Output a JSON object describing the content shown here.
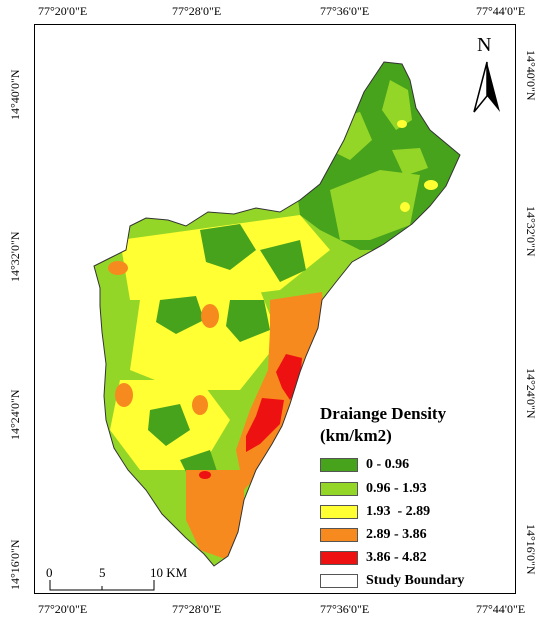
{
  "coordinates": {
    "top": [
      "77°20'0\"E",
      "77°28'0\"E",
      "77°36'0\"E",
      "77°44'0\"E"
    ],
    "bottom": [
      "77°20'0\"E",
      "77°28'0\"E",
      "77°36'0\"E",
      "77°44'0\"E"
    ],
    "left": [
      "14°40'0\"N",
      "14°32'0\"N",
      "14°24'0\"N",
      "14°16'0\"N"
    ],
    "right": [
      "14°40'0\"N",
      "14°32'0\"N",
      "14°24'0\"N",
      "14°16'0\"N"
    ]
  },
  "north_arrow": {
    "letter": "N",
    "icon": "north-arrow-icon"
  },
  "legend": {
    "title_line1": "Draiange Density",
    "title_line2": "(km/km2)",
    "classes": [
      {
        "label": "0 - 0.96",
        "color": "#48a31c"
      },
      {
        "label": "0.96 - 1.93",
        "color": "#94d628"
      },
      {
        "label": "1.93  - 2.89",
        "color": "#ffff33"
      },
      {
        "label": "2.89 - 3.86",
        "color": "#f78a1e"
      },
      {
        "label": "3.86 - 4.82",
        "color": "#ee1111"
      },
      {
        "label": "Study Boundary",
        "color": "#ffffff"
      }
    ]
  },
  "scale_bar": {
    "labels": [
      "0",
      "5",
      "10 KM"
    ]
  }
}
